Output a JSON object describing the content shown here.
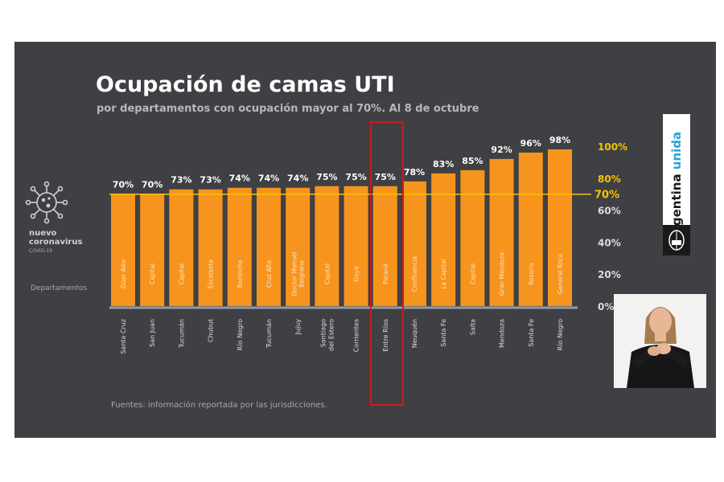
{
  "slide": {
    "title": "Ocupación de camas UTI",
    "subtitle": "por departamentos con ocupación mayor al 70%. Al 8 de octubre",
    "logo_lines": [
      "nuevo",
      "coronavirus"
    ],
    "logo_sub": "COVID-19",
    "dept_label": "Departamentos",
    "source": "Fuentes: información reportada por las jurisdicciones.",
    "brand_a": "Argentina ",
    "brand_b": "unida"
  },
  "colors": {
    "background": "#3f4044",
    "bar": "#f7941d",
    "accent": "#f5c400",
    "highlight": "#d0181f",
    "brand_blue": "#2aa3d8"
  },
  "icons": [
    "coronavirus-icon",
    "national-seal-icon"
  ],
  "chart_data": {
    "type": "bar",
    "title": "Ocupación de camas UTI",
    "subtitle": "por departamentos con ocupación mayor al 70%. Al 8 de octubre",
    "categories": [
      "Güer Aike",
      "Capital",
      "Capital",
      "Escalante",
      "Bariloche",
      "Cruz Alta",
      "Doctor Manuel Belgrano",
      "Capital",
      "Goya",
      "Paraná",
      "Confluencia",
      "La Capital",
      "Capital",
      "Gran Mendoza",
      "Rosario",
      "General Roca"
    ],
    "provinces": [
      "Santa Cruz",
      "San Juan",
      "Tucumán",
      "Chubut",
      "Río Negro",
      "Tucumán",
      "Jujuy",
      "Santiago del Estero",
      "Corrientes",
      "Entre Ríos",
      "Neuquén",
      "Santa Fe",
      "Salta",
      "Mendoza",
      "Santa Fe",
      "Río Negro"
    ],
    "values": [
      70,
      70,
      73,
      73,
      74,
      74,
      74,
      75,
      75,
      75,
      78,
      83,
      85,
      92,
      96,
      98
    ],
    "value_labels": [
      "70%",
      "70%",
      "73%",
      "73%",
      "74%",
      "74%",
      "74%",
      "75%",
      "75%",
      "75%",
      "78%",
      "83%",
      "85%",
      "92%",
      "96%",
      "98%"
    ],
    "yticks": [
      0,
      20,
      40,
      60,
      80,
      100
    ],
    "ytick_labels": [
      "0%",
      "20%",
      "40%",
      "60%",
      "80%",
      "100%"
    ],
    "threshold": 70,
    "threshold_label": "70%",
    "ylim": [
      0,
      100
    ],
    "highlighted_index": 9,
    "xlabel": "Departamentos",
    "ylabel": ""
  }
}
